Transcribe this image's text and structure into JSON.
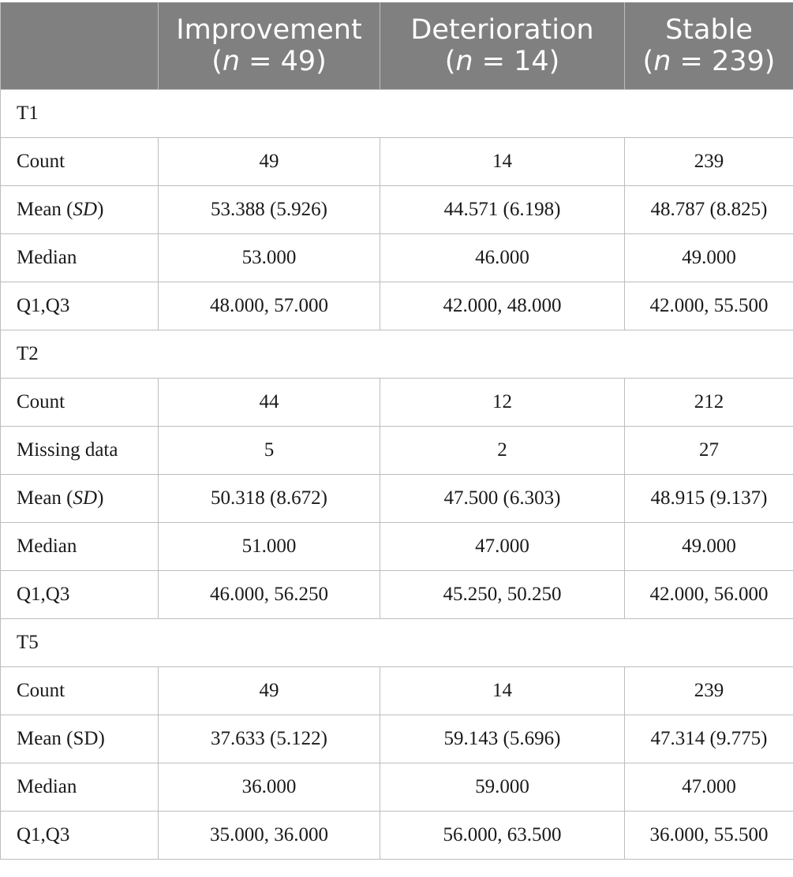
{
  "header": {
    "columns": [
      {
        "name": "",
        "n_label": ""
      },
      {
        "name": "Improvement",
        "n_prefix": "(",
        "n_var": "n",
        "n_rest": " = 49)"
      },
      {
        "name": "Deterioration",
        "n_prefix": "(",
        "n_var": "n",
        "n_rest": " = 14)"
      },
      {
        "name": "Stable",
        "n_prefix": "(",
        "n_var": "n",
        "n_rest": " = 239)"
      }
    ]
  },
  "sections": [
    {
      "title": "T1",
      "rows": [
        {
          "label": "Count",
          "label_italic": "",
          "label_suffix": "",
          "values": [
            "49",
            "14",
            "239"
          ]
        },
        {
          "label": "Mean (",
          "label_italic": "SD",
          "label_suffix": ")",
          "values": [
            "53.388 (5.926)",
            "44.571 (6.198)",
            "48.787 (8.825)"
          ]
        },
        {
          "label": "Median",
          "label_italic": "",
          "label_suffix": "",
          "values": [
            "53.000",
            "46.000",
            "49.000"
          ]
        },
        {
          "label": "Q1,Q3",
          "label_italic": "",
          "label_suffix": "",
          "values": [
            "48.000, 57.000",
            "42.000, 48.000",
            "42.000, 55.500"
          ]
        }
      ]
    },
    {
      "title": "T2",
      "rows": [
        {
          "label": "Count",
          "label_italic": "",
          "label_suffix": "",
          "values": [
            "44",
            "12",
            "212"
          ]
        },
        {
          "label": "Missing data",
          "label_italic": "",
          "label_suffix": "",
          "values": [
            "5",
            "2",
            "27"
          ]
        },
        {
          "label": "Mean (",
          "label_italic": "SD",
          "label_suffix": ")",
          "values": [
            "50.318 (8.672)",
            "47.500 (6.303)",
            "48.915 (9.137)"
          ]
        },
        {
          "label": "Median",
          "label_italic": "",
          "label_suffix": "",
          "values": [
            "51.000",
            "47.000",
            "49.000"
          ]
        },
        {
          "label": "Q1,Q3",
          "label_italic": "",
          "label_suffix": "",
          "values": [
            "46.000, 56.250",
            "45.250, 50.250",
            "42.000, 56.000"
          ]
        }
      ]
    },
    {
      "title": "T5",
      "rows": [
        {
          "label": "Count",
          "label_italic": "",
          "label_suffix": "",
          "values": [
            "49",
            "14",
            "239"
          ]
        },
        {
          "label": "Mean (SD)",
          "label_italic": "",
          "label_suffix": "",
          "values": [
            "37.633 (5.122)",
            "59.143 (5.696)",
            "47.314 (9.775)"
          ]
        },
        {
          "label": "Median",
          "label_italic": "",
          "label_suffix": "",
          "values": [
            "36.000",
            "59.000",
            "47.000"
          ]
        },
        {
          "label": "Q1,Q3",
          "label_italic": "",
          "label_suffix": "",
          "values": [
            "35.000, 36.000",
            "56.000, 63.500",
            "36.000, 55.500"
          ]
        }
      ]
    }
  ]
}
